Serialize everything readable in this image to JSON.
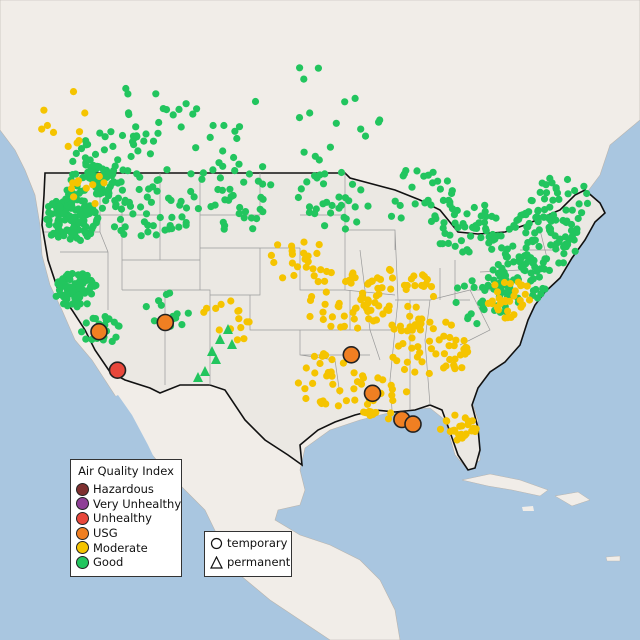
{
  "legend": {
    "title": "Air Quality Index",
    "categories": [
      {
        "label": "Hazardous",
        "color": "#7e2f2f"
      },
      {
        "label": "Very Unhealthy",
        "color": "#8f3f97"
      },
      {
        "label": "Unhealthy",
        "color": "#e8473b"
      },
      {
        "label": "USG",
        "color": "#f07f22"
      },
      {
        "label": "Moderate",
        "color": "#f5c400"
      },
      {
        "label": "Good",
        "color": "#22c55e"
      }
    ],
    "monitor_types": [
      {
        "label": "temporary",
        "shape": "circle-icon"
      },
      {
        "label": "permanent",
        "shape": "triangle-icon"
      }
    ]
  },
  "colors": {
    "water": "#a9c6e0",
    "land": "#f1ede8",
    "usa": "#ebe8e3",
    "border": "#111111",
    "state_line": "#9a9a9a",
    "no_data": "#c8c8c8"
  },
  "map": {
    "extent": {
      "lon": [
        -127,
        -64
      ],
      "lat": [
        18,
        56
      ]
    },
    "large_monitors": [
      {
        "category": "Unhealthy",
        "lon": -117.5,
        "lat": 33.9
      },
      {
        "category": "USG",
        "lon": -119.5,
        "lat": 36.4
      },
      {
        "category": "USG",
        "lon": -112.3,
        "lat": 37.0
      },
      {
        "category": "USG",
        "lon": -92.1,
        "lat": 34.9
      },
      {
        "category": "USG",
        "lon": -89.8,
        "lat": 32.4
      },
      {
        "category": "USG",
        "lon": -86.6,
        "lat": 30.7
      },
      {
        "category": "USG",
        "lon": -85.4,
        "lat": 30.4
      }
    ]
  }
}
